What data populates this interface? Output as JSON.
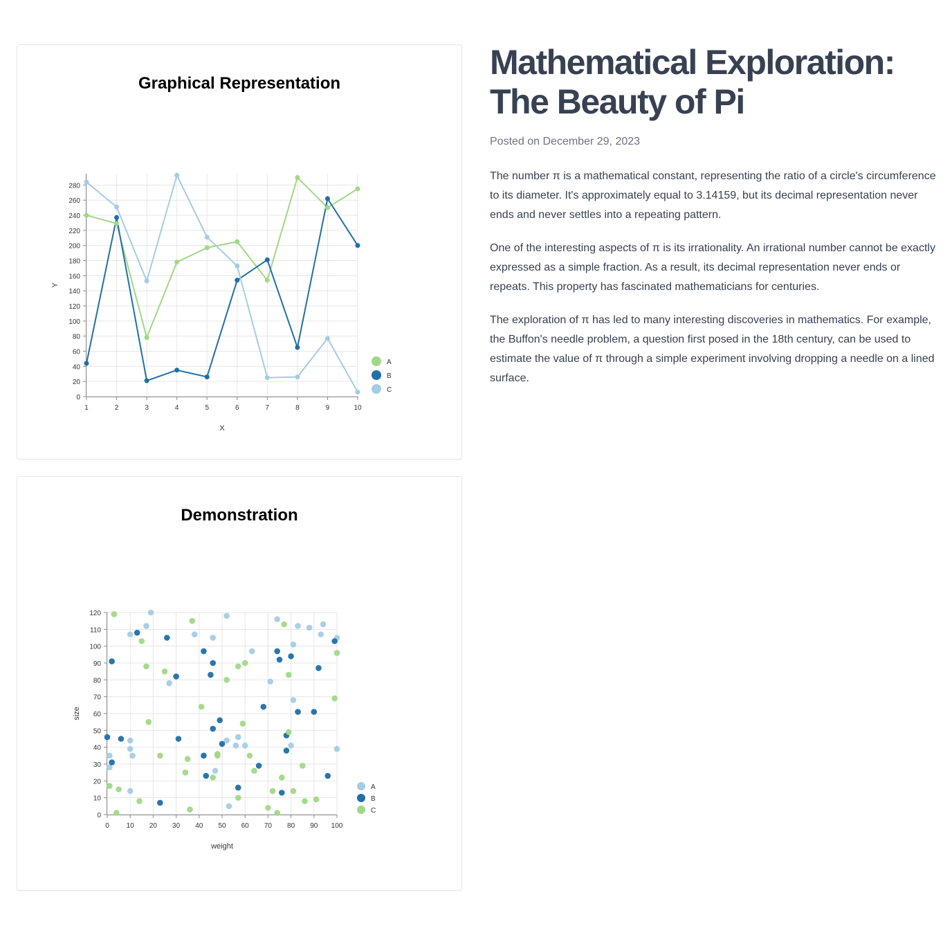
{
  "article": {
    "title": "Mathematical Exploration: The Beauty of Pi",
    "date": "Posted on December 29, 2023",
    "paragraphs": [
      "The number π is a mathematical constant, representing the ratio of a circle's circumference to its diameter. It's approximately equal to 3.14159, but its decimal representation never ends and never settles into a repeating pattern.",
      "One of the interesting aspects of π is its irrationality. An irrational number cannot be exactly expressed as a simple fraction. As a result, its decimal representation never ends or repeats. This property has fascinated mathematicians for centuries.",
      "The exploration of π has led to many interesting discoveries in mathematics. For example, the Buffon's needle problem, a question first posed in the 18th century, can be used to estimate the value of π through a simple experiment involving dropping a needle on a lined surface."
    ]
  },
  "chart_data": [
    {
      "type": "line",
      "title": "Graphical Representation",
      "xlabel": "X",
      "ylabel": "Y",
      "x": [
        1,
        2,
        3,
        4,
        5,
        6,
        7,
        8,
        9,
        10
      ],
      "xlim": [
        1,
        10
      ],
      "ylim": [
        0,
        295
      ],
      "yticks": [
        0,
        20,
        40,
        60,
        80,
        100,
        120,
        140,
        160,
        180,
        200,
        220,
        240,
        260,
        280
      ],
      "grid": true,
      "legend_position": "right",
      "series": [
        {
          "name": "A",
          "color": "#a1d886",
          "values": [
            240,
            229,
            78,
            178,
            197,
            205,
            154,
            290,
            250,
            275
          ]
        },
        {
          "name": "B",
          "color": "#1f6fa8",
          "values": [
            44,
            237,
            21,
            35,
            26,
            154,
            181,
            65,
            262,
            200
          ]
        },
        {
          "name": "C",
          "color": "#a6cce3",
          "values": [
            284,
            251,
            153,
            293,
            211,
            173,
            25,
            26,
            77,
            6
          ]
        }
      ]
    },
    {
      "type": "scatter",
      "title": "Demonstration",
      "xlabel": "weight",
      "ylabel": "size",
      "xlim": [
        0,
        100
      ],
      "ylim": [
        0,
        120
      ],
      "xticks": [
        0,
        10,
        20,
        30,
        40,
        50,
        60,
        70,
        80,
        90,
        100
      ],
      "yticks": [
        0,
        10,
        20,
        30,
        40,
        50,
        60,
        70,
        80,
        90,
        100,
        110,
        120
      ],
      "grid": true,
      "legend_position": "right",
      "series": [
        {
          "name": "A",
          "color": "#a6cce3",
          "points": [
            [
              19,
              120
            ],
            [
              52,
              118
            ],
            [
              74,
              116
            ],
            [
              10,
              107
            ],
            [
              17,
              112
            ],
            [
              38,
              107
            ],
            [
              46,
              105
            ],
            [
              83,
              112
            ],
            [
              88,
              111
            ],
            [
              94,
              113
            ],
            [
              93,
              107
            ],
            [
              100,
              105
            ],
            [
              81,
              101
            ],
            [
              63,
              97
            ],
            [
              27,
              78
            ],
            [
              71,
              79
            ],
            [
              81,
              68
            ],
            [
              1,
              35
            ],
            [
              1,
              28
            ],
            [
              10,
              44
            ],
            [
              10,
              39
            ],
            [
              11,
              35
            ],
            [
              10,
              14
            ],
            [
              47,
              26
            ],
            [
              52,
              44
            ],
            [
              56,
              41
            ],
            [
              57,
              46
            ],
            [
              60,
              41
            ],
            [
              80,
              41
            ],
            [
              100,
              39
            ],
            [
              53,
              5
            ]
          ]
        },
        {
          "name": "B",
          "color": "#1f6fa8",
          "points": [
            [
              13,
              108
            ],
            [
              26,
              105
            ],
            [
              99,
              103
            ],
            [
              42,
              97
            ],
            [
              74,
              97
            ],
            [
              80,
              94
            ],
            [
              75,
              92
            ],
            [
              2,
              91
            ],
            [
              46,
              90
            ],
            [
              92,
              87
            ],
            [
              45,
              83
            ],
            [
              30,
              82
            ],
            [
              68,
              64
            ],
            [
              83,
              61
            ],
            [
              90,
              61
            ],
            [
              49,
              56
            ],
            [
              46,
              51
            ],
            [
              78,
              47
            ],
            [
              0,
              46
            ],
            [
              6,
              45
            ],
            [
              31,
              45
            ],
            [
              50,
              42
            ],
            [
              78,
              38
            ],
            [
              42,
              35
            ],
            [
              2,
              31
            ],
            [
              66,
              29
            ],
            [
              43,
              23
            ],
            [
              96,
              23
            ],
            [
              57,
              16
            ],
            [
              76,
              13
            ],
            [
              23,
              7
            ]
          ]
        },
        {
          "name": "C",
          "color": "#a1d886",
          "points": [
            [
              3,
              119
            ],
            [
              37,
              115
            ],
            [
              77,
              113
            ],
            [
              15,
              103
            ],
            [
              100,
              96
            ],
            [
              17,
              88
            ],
            [
              57,
              88
            ],
            [
              60,
              90
            ],
            [
              25,
              85
            ],
            [
              79,
              83
            ],
            [
              52,
              80
            ],
            [
              99,
              69
            ],
            [
              41,
              64
            ],
            [
              59,
              54
            ],
            [
              18,
              55
            ],
            [
              79,
              49
            ],
            [
              48,
              36
            ],
            [
              48,
              35
            ],
            [
              23,
              35
            ],
            [
              62,
              35
            ],
            [
              35,
              33
            ],
            [
              85,
              29
            ],
            [
              34,
              25
            ],
            [
              64,
              26
            ],
            [
              46,
              22
            ],
            [
              76,
              22
            ],
            [
              1,
              17
            ],
            [
              5,
              15
            ],
            [
              72,
              14
            ],
            [
              81,
              14
            ],
            [
              57,
              10
            ],
            [
              14,
              8
            ],
            [
              86,
              8
            ],
            [
              91,
              9
            ],
            [
              36,
              3
            ],
            [
              70,
              4
            ],
            [
              74,
              1
            ],
            [
              4,
              1
            ]
          ]
        }
      ]
    }
  ]
}
